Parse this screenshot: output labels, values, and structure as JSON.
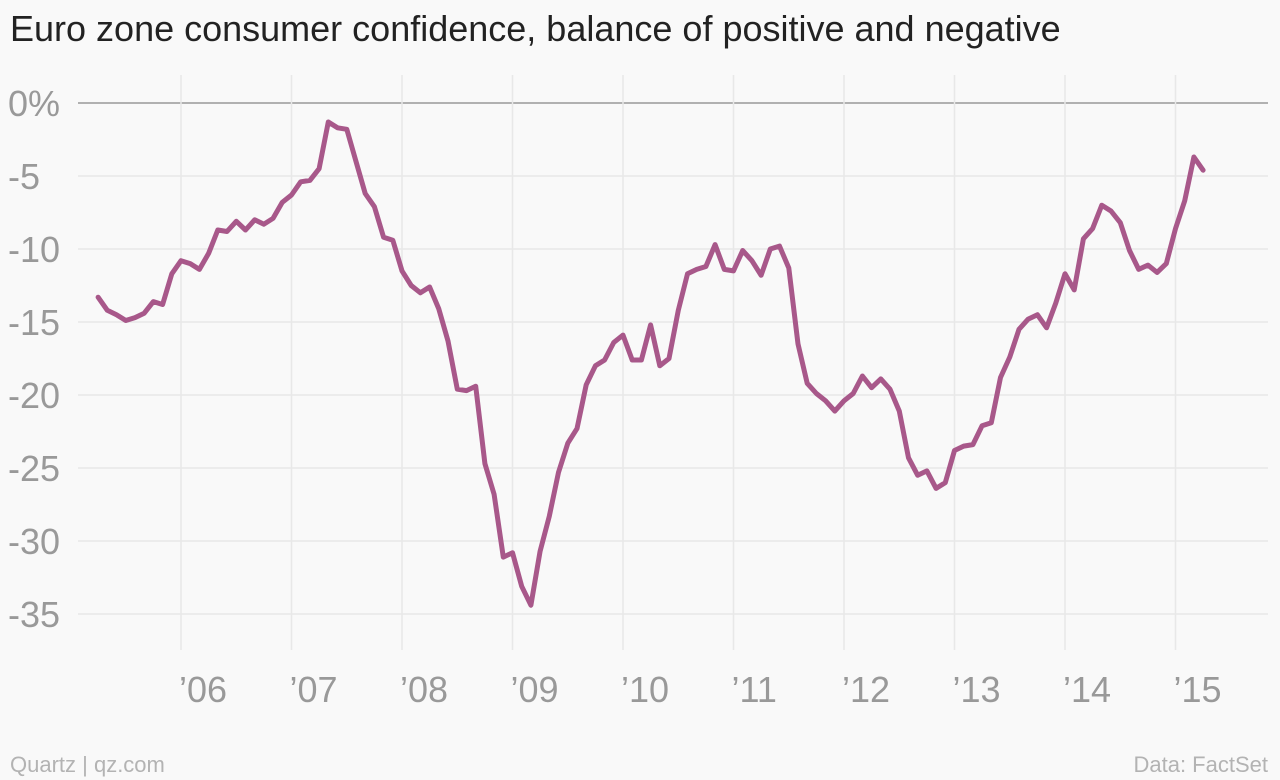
{
  "title": "Euro zone consumer confidence, balance of positive and negative",
  "footer": {
    "left": "Quartz | qz.com",
    "right": "Data: FactSet"
  },
  "colors": {
    "line": "#a8588a",
    "grid": "#e8e8e8",
    "zero": "#999999",
    "tick_text": "#999999"
  },
  "chart_data": {
    "type": "line",
    "title": "Euro zone consumer confidence, balance of positive and negative",
    "xlabel": "",
    "ylabel": "",
    "x_start": "2005-04",
    "x_step": "month",
    "xlim": [
      "2005-01",
      "2015-12"
    ],
    "ylim": [
      -38,
      0
    ],
    "yticks": [
      0,
      -5,
      -10,
      -15,
      -20,
      -25,
      -30,
      -35
    ],
    "ytick_labels": [
      "0%",
      "-5",
      "-10",
      "-15",
      "-20",
      "-25",
      "-30",
      "-35"
    ],
    "xticks": [
      "2006-01",
      "2007-01",
      "2008-01",
      "2009-01",
      "2010-01",
      "2011-01",
      "2012-01",
      "2013-01",
      "2014-01",
      "2015-01"
    ],
    "xtick_labels": [
      "’06",
      "’07",
      "’08",
      "’09",
      "’10",
      "’11",
      "’12",
      "’13",
      "’14",
      "’15"
    ],
    "grid": true,
    "series": [
      {
        "values": [
          -13.3,
          -14.2,
          -14.5,
          -14.9,
          -14.7,
          -14.4,
          -13.6,
          -13.8,
          -11.7,
          -10.8,
          -11.0,
          -11.4,
          -10.3,
          -8.7,
          -8.8,
          -8.1,
          -8.7,
          -8.0,
          -8.3,
          -7.9,
          -6.8,
          -6.3,
          -5.4,
          -5.3,
          -4.5,
          -1.3,
          -1.7,
          -1.8,
          -4.0,
          -6.2,
          -7.1,
          -9.2,
          -9.4,
          -11.5,
          -12.5,
          -13.0,
          -12.6,
          -14.1,
          -16.3,
          -19.6,
          -19.7,
          -19.4,
          -24.7,
          -26.8,
          -31.1,
          -30.8,
          -33.1,
          -34.4,
          -30.7,
          -28.3,
          -25.3,
          -23.3,
          -22.3,
          -19.3,
          -18.0,
          -17.6,
          -16.4,
          -15.9,
          -17.6,
          -17.6,
          -15.2,
          -18.0,
          -17.5,
          -14.2,
          -11.7,
          -11.4,
          -11.2,
          -9.7,
          -11.4,
          -11.5,
          -10.1,
          -10.8,
          -11.8,
          -10.0,
          -9.8,
          -11.3,
          -16.5,
          -19.2,
          -19.9,
          -20.4,
          -21.1,
          -20.4,
          -19.9,
          -18.7,
          -19.5,
          -18.9,
          -19.6,
          -21.1,
          -24.3,
          -25.5,
          -25.2,
          -26.4,
          -26.0,
          -23.8,
          -23.5,
          -23.4,
          -22.1,
          -21.9,
          -18.8,
          -17.4,
          -15.5,
          -14.8,
          -14.5,
          -15.4,
          -13.7,
          -11.7,
          -12.8,
          -9.3,
          -8.6,
          -7.0,
          -7.4,
          -8.2,
          -10.1,
          -11.4,
          -11.1,
          -11.6,
          -11.0,
          -8.6,
          -6.7,
          -3.7,
          -4.6
        ]
      }
    ]
  }
}
